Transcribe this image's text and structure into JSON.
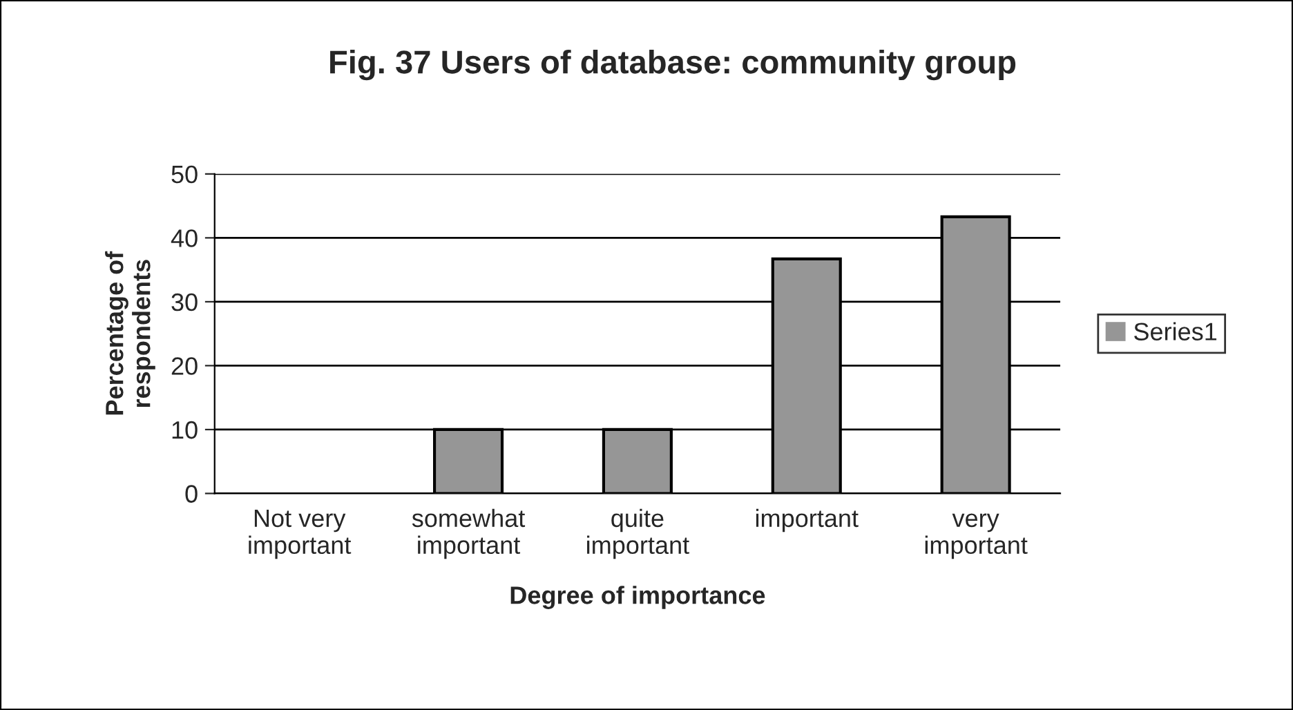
{
  "chart_data": {
    "type": "bar",
    "title": "Fig. 37 Users of database: community group",
    "xlabel": "Degree of importance",
    "ylabel": "Percentage of\nrespondents",
    "categories": [
      "Not very\nimportant",
      "somewhat\nimportant",
      "quite\nimportant",
      "important",
      "very\nimportant"
    ],
    "series": [
      {
        "name": "Series1",
        "color": "#969696",
        "values": [
          0,
          10,
          10,
          36.7,
          43.3
        ]
      }
    ],
    "ylim": [
      0,
      50
    ],
    "yticks": [
      0,
      10,
      20,
      30,
      40,
      50
    ],
    "grid": "y",
    "legend": "right"
  }
}
